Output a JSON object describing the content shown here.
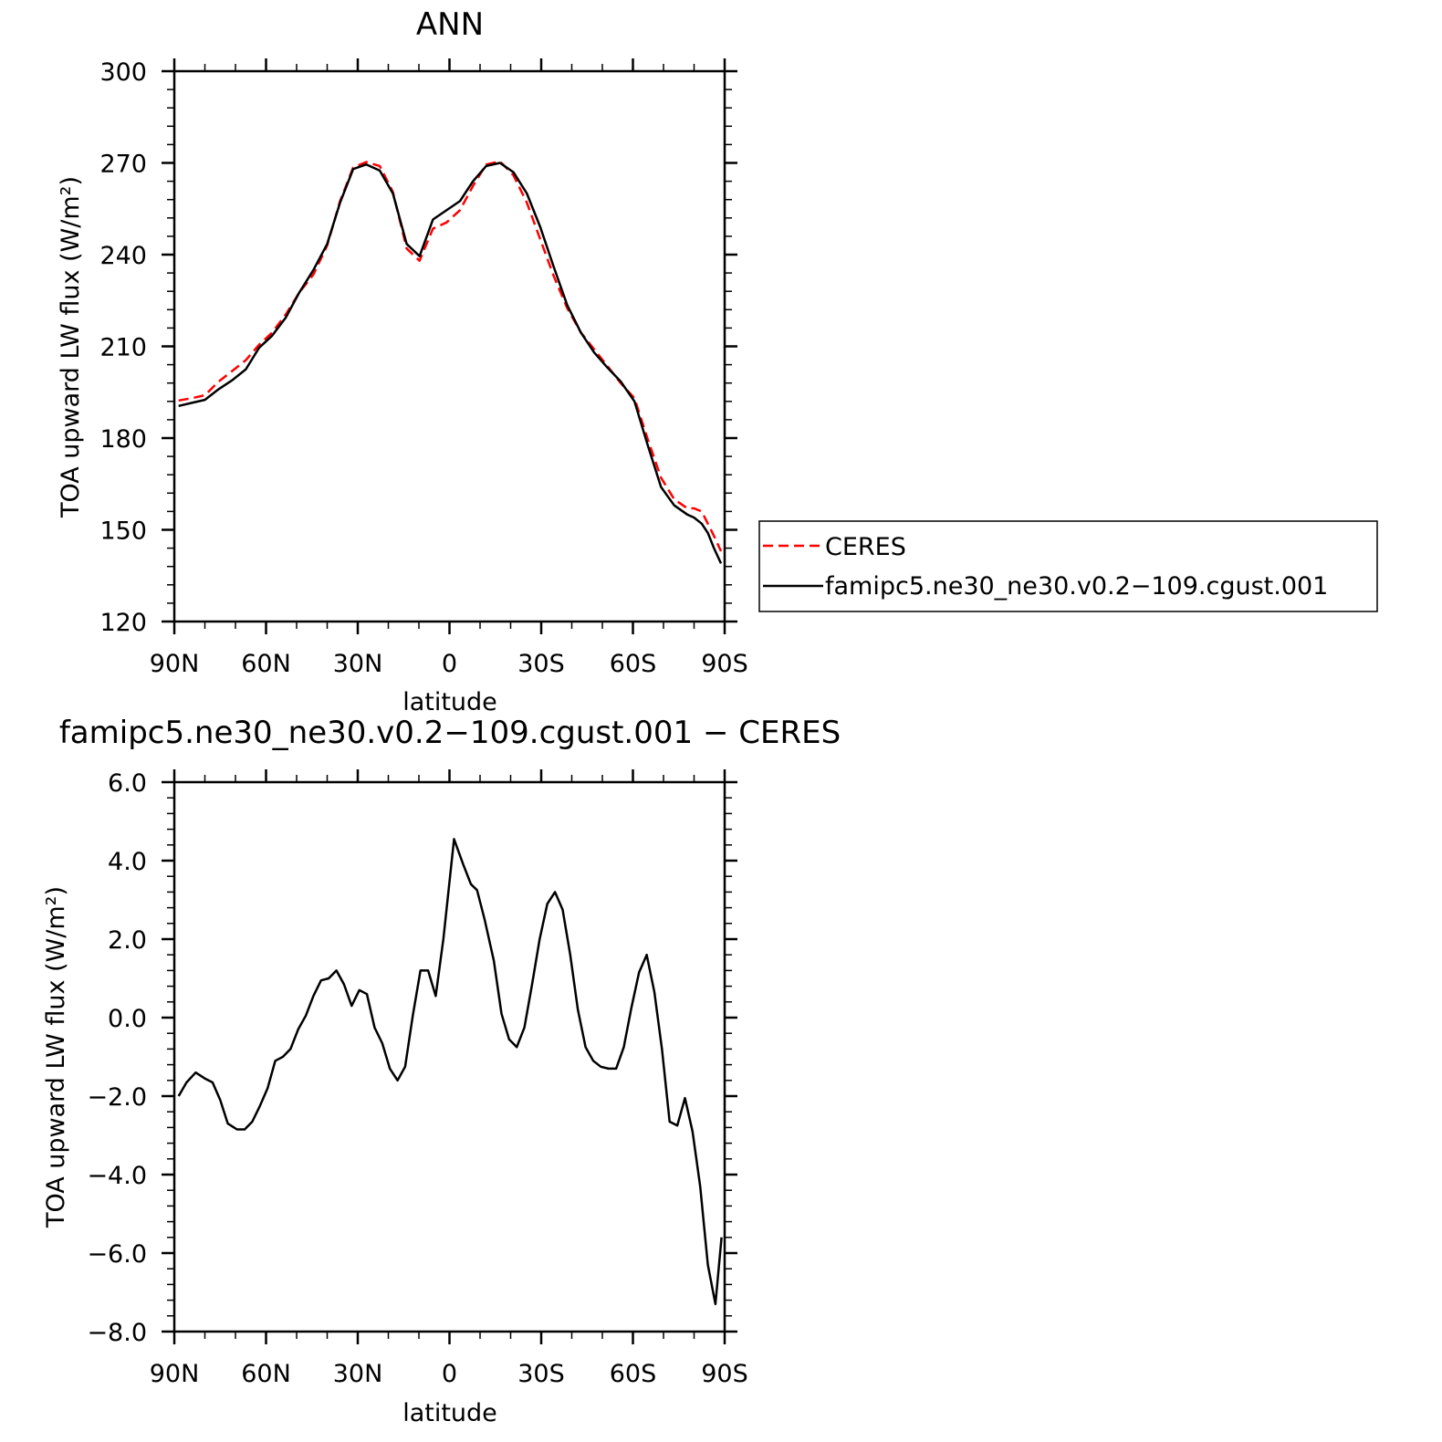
{
  "chart_data": [
    {
      "type": "line",
      "title": "ANN",
      "xlabel": "latitude",
      "ylabel": "TOA upward LW flux (W/m²)",
      "xlim": [
        90,
        -90
      ],
      "ylim": [
        120,
        300
      ],
      "yticks": [
        "120",
        "150",
        "180",
        "210",
        "240",
        "270",
        "300"
      ],
      "ytick_values": [
        120,
        150,
        180,
        210,
        240,
        270,
        300
      ],
      "xticks": [
        "90N",
        "60N",
        "30N",
        "0",
        "30S",
        "60S",
        "90S"
      ],
      "xtick_values": [
        90,
        60,
        30,
        0,
        -30,
        -60,
        -90
      ],
      "grid": false,
      "legend_position": "right",
      "series": [
        {
          "name": "CERES",
          "color": "#ff0000",
          "style": "dashed",
          "x": [
            88.6,
            84.4,
            80.0,
            75.5,
            71.0,
            66.6,
            62.3,
            58.0,
            53.5,
            49.2,
            44.5,
            40.0,
            35.8,
            31.5,
            27.2,
            22.8,
            18.5,
            14.0,
            9.8,
            5.4,
            1.0,
            -3.4,
            -7.7,
            -12.0,
            -16.5,
            -20.9,
            -25.3,
            -29.7,
            -34.1,
            -38.5,
            -43.0,
            -47.3,
            -51.7,
            -56.0,
            -60.5,
            -64.9,
            -69.2,
            -73.5,
            -77.8,
            -80.0,
            -82.5,
            -84.5,
            -86.5,
            -88.8
          ],
          "y": [
            192.3,
            193.0,
            194.0,
            198.5,
            202.0,
            205.5,
            210.5,
            214.5,
            220.5,
            227.5,
            233.5,
            243.0,
            257.5,
            268.5,
            270.3,
            269.0,
            260.5,
            242.0,
            238.0,
            248.5,
            250.5,
            254.5,
            262.5,
            269.5,
            270.5,
            266.0,
            257.0,
            245.0,
            233.0,
            222.5,
            214.5,
            209.0,
            203.5,
            198.0,
            193.0,
            179.5,
            167.0,
            160.0,
            157.0,
            157.0,
            156.0,
            152.0,
            148.0,
            143.0
          ]
        },
        {
          "name": "famipc5.ne30_ne30.v0.2−109.cgust.001",
          "color": "#000000",
          "style": "solid",
          "x": [
            88.6,
            84.4,
            80.0,
            75.5,
            71.0,
            66.6,
            62.3,
            58.0,
            53.5,
            49.2,
            44.5,
            40.0,
            35.8,
            31.5,
            27.2,
            22.8,
            18.5,
            14.0,
            9.8,
            5.4,
            1.0,
            -3.4,
            -7.7,
            -12.0,
            -16.5,
            -20.9,
            -25.3,
            -29.7,
            -34.1,
            -38.5,
            -43.0,
            -47.3,
            -51.7,
            -56.0,
            -60.5,
            -64.9,
            -69.2,
            -73.5,
            -77.8,
            -80.0,
            -82.5,
            -84.5,
            -86.5,
            -88.8
          ],
          "y": [
            190.5,
            191.5,
            192.5,
            196.0,
            199.0,
            202.5,
            209.5,
            213.5,
            219.5,
            227.5,
            235.0,
            243.5,
            257.0,
            268.0,
            269.5,
            267.5,
            260.0,
            243.5,
            239.5,
            251.5,
            254.5,
            257.5,
            264.0,
            269.0,
            270.0,
            267.0,
            260.0,
            249.0,
            236.0,
            223.5,
            214.5,
            208.0,
            203.0,
            198.5,
            192.0,
            177.5,
            164.0,
            158.0,
            155.0,
            154.0,
            152.0,
            149.0,
            144.0,
            139.0
          ]
        }
      ]
    },
    {
      "type": "line",
      "title": "famipc5.ne30_ne30.v0.2−109.cgust.001 − CERES",
      "xlabel": "latitude",
      "ylabel": "TOA upward LW flux (W/m²)",
      "xlim": [
        90,
        -90
      ],
      "ylim": [
        -8.0,
        6.0
      ],
      "yticks": [
        "−8.0",
        "−6.0",
        "−4.0",
        "−2.0",
        "0.0",
        "2.0",
        "4.0",
        "6.0"
      ],
      "ytick_values": [
        -8,
        -6,
        -4,
        -2,
        0,
        2,
        4,
        6
      ],
      "xticks": [
        "90N",
        "60N",
        "30N",
        "0",
        "30S",
        "60S",
        "90S"
      ],
      "xtick_values": [
        90,
        60,
        30,
        0,
        -30,
        -60,
        -90
      ],
      "grid": false,
      "series": [
        {
          "name": "",
          "color": "#000000",
          "style": "solid",
          "x": [
            88.6,
            86.0,
            83.0,
            80.0,
            77.5,
            75.0,
            72.5,
            69.5,
            67.0,
            64.5,
            62.0,
            59.5,
            57.0,
            54.5,
            52.0,
            49.5,
            47.0,
            44.5,
            42.0,
            39.5,
            37.0,
            34.5,
            32.0,
            29.5,
            27.0,
            24.5,
            22.0,
            19.5,
            17.0,
            14.5,
            12.0,
            9.5,
            7.0,
            4.5,
            2.0,
            -1.5,
            -4.5,
            -7.0,
            -9.0,
            -11.5,
            -14.5,
            -17.0,
            -19.5,
            -22.0,
            -24.5,
            -27.0,
            -29.5,
            -32.0,
            -34.5,
            -37.0,
            -39.5,
            -42.0,
            -44.5,
            -47.0,
            -49.5,
            -52.0,
            -54.5,
            -57.0,
            -59.5,
            -62.0,
            -64.5,
            -67.0,
            -69.5,
            -72.0,
            -74.5,
            -77.0,
            -79.5,
            -82.0,
            -84.5,
            -87.0,
            -89.0
          ],
          "y": [
            -2.0,
            -1.65,
            -1.4,
            -1.55,
            -1.65,
            -2.1,
            -2.7,
            -2.85,
            -2.85,
            -2.65,
            -2.25,
            -1.8,
            -1.1,
            -1.0,
            -0.8,
            -0.3,
            0.05,
            0.55,
            0.95,
            1.0,
            1.2,
            0.85,
            0.3,
            0.7,
            0.6,
            -0.25,
            -0.65,
            -1.3,
            -1.6,
            -1.25,
            0.05,
            1.2,
            1.2,
            0.55,
            2.0,
            4.55,
            3.9,
            3.4,
            3.25,
            2.5,
            1.45,
            0.1,
            -0.55,
            -0.75,
            -0.25,
            0.85,
            2.0,
            2.9,
            3.2,
            2.75,
            1.6,
            0.2,
            -0.75,
            -1.1,
            -1.25,
            -1.3,
            -1.3,
            -0.75,
            0.25,
            1.15,
            1.6,
            0.65,
            -0.8,
            -2.65,
            -2.75,
            -2.05,
            -2.9,
            -4.3,
            -6.3,
            -7.3,
            -5.6
          ]
        }
      ]
    }
  ]
}
